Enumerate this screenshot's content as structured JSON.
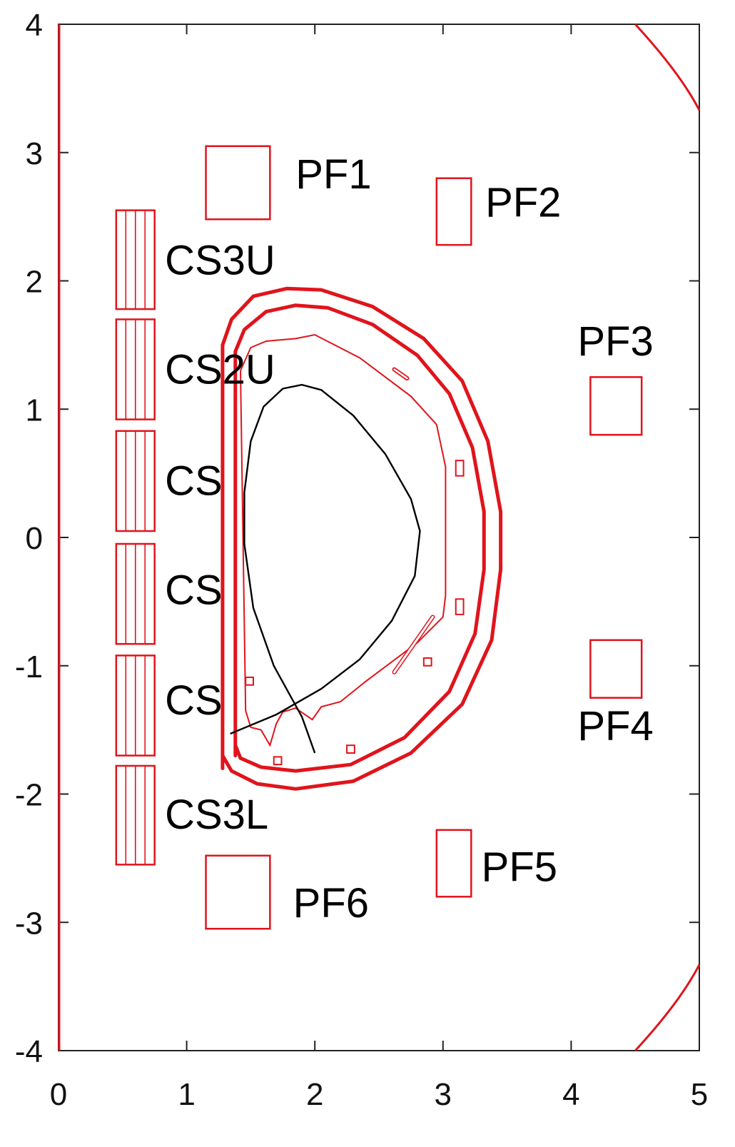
{
  "chart_data": {
    "type": "diagram",
    "xlim": [
      0,
      5
    ],
    "ylim": [
      -4,
      4
    ],
    "x_ticks": [
      0,
      1,
      2,
      3,
      4,
      5
    ],
    "y_ticks": [
      4,
      3,
      2,
      1,
      0,
      -1,
      -2,
      -3,
      -4
    ],
    "x_tick_labels": [
      "0",
      "1",
      "2",
      "3",
      "4",
      "5"
    ],
    "y_tick_labels": [
      "4",
      "3",
      "2",
      "1",
      "0",
      "-1",
      "-2",
      "-3",
      "-4"
    ],
    "colors": {
      "structure": "#e0141c",
      "plasma": "#000000",
      "axes": "#222222"
    },
    "pf_coils": [
      {
        "name": "PF1",
        "r": [
          1.15,
          1.65
        ],
        "z": [
          2.48,
          3.05
        ]
      },
      {
        "name": "PF2",
        "r": [
          2.95,
          3.22
        ],
        "z": [
          2.28,
          2.8
        ]
      },
      {
        "name": "PF3",
        "r": [
          4.15,
          4.55
        ],
        "z": [
          0.8,
          1.25
        ]
      },
      {
        "name": "PF4",
        "r": [
          4.15,
          4.55
        ],
        "z": [
          -1.25,
          -0.8
        ]
      },
      {
        "name": "PF5",
        "r": [
          2.95,
          3.22
        ],
        "z": [
          -2.8,
          -2.28
        ]
      },
      {
        "name": "PF6",
        "r": [
          1.15,
          1.65
        ],
        "z": [
          -3.05,
          -2.48
        ]
      }
    ],
    "cs_modules": [
      {
        "name": "CS3U",
        "z": [
          1.78,
          2.55
        ]
      },
      {
        "name": "CS2U",
        "z": [
          0.92,
          1.7
        ]
      },
      {
        "name": "CS1U",
        "z": [
          0.05,
          0.83
        ]
      },
      {
        "name": "CS1L",
        "z": [
          -0.83,
          -0.05
        ]
      },
      {
        "name": "CS2L",
        "z": [
          -1.7,
          -0.92
        ]
      },
      {
        "name": "CS3L",
        "z": [
          -2.55,
          -1.78
        ]
      }
    ],
    "cs_r": [
      0.45,
      0.75
    ],
    "labels": [
      {
        "key": "PF1",
        "text": "PF1"
      },
      {
        "key": "PF2",
        "text": "PF2"
      },
      {
        "key": "PF3",
        "text": "PF3"
      },
      {
        "key": "PF4",
        "text": "PF4"
      },
      {
        "key": "PF5",
        "text": "PF5"
      },
      {
        "key": "PF6",
        "text": "PF6"
      },
      {
        "key": "CS3U",
        "text": "CS3U"
      },
      {
        "key": "CS2U",
        "text": "CS2U"
      },
      {
        "key": "CS1U",
        "text": "CS"
      },
      {
        "key": "CS1L",
        "text": "CS"
      },
      {
        "key": "CS2L",
        "text": "CS"
      },
      {
        "key": "CS3L",
        "text": "CS3L"
      }
    ],
    "vessel_outer": [
      [
        1.28,
        -1.8
      ],
      [
        1.28,
        1.5
      ],
      [
        1.35,
        1.7
      ],
      [
        1.52,
        1.88
      ],
      [
        1.78,
        1.94
      ],
      [
        2.05,
        1.93
      ],
      [
        2.45,
        1.8
      ],
      [
        2.85,
        1.55
      ],
      [
        3.15,
        1.22
      ],
      [
        3.35,
        0.75
      ],
      [
        3.45,
        0.2
      ],
      [
        3.45,
        -0.25
      ],
      [
        3.38,
        -0.8
      ],
      [
        3.15,
        -1.3
      ],
      [
        2.75,
        -1.68
      ],
      [
        2.3,
        -1.9
      ],
      [
        1.85,
        -1.96
      ],
      [
        1.55,
        -1.92
      ],
      [
        1.35,
        -1.82
      ],
      [
        1.28,
        -1.7
      ]
    ],
    "vessel_inner": [
      [
        1.38,
        -1.7
      ],
      [
        1.38,
        1.45
      ],
      [
        1.45,
        1.62
      ],
      [
        1.62,
        1.76
      ],
      [
        1.85,
        1.81
      ],
      [
        2.1,
        1.79
      ],
      [
        2.45,
        1.66
      ],
      [
        2.8,
        1.42
      ],
      [
        3.05,
        1.12
      ],
      [
        3.23,
        0.7
      ],
      [
        3.32,
        0.2
      ],
      [
        3.32,
        -0.25
      ],
      [
        3.25,
        -0.75
      ],
      [
        3.05,
        -1.2
      ],
      [
        2.7,
        -1.56
      ],
      [
        2.28,
        -1.77
      ],
      [
        1.85,
        -1.82
      ],
      [
        1.58,
        -1.79
      ],
      [
        1.42,
        -1.72
      ],
      [
        1.38,
        -1.62
      ]
    ],
    "first_wall": [
      [
        1.46,
        -1.35
      ],
      [
        1.42,
        1.3
      ],
      [
        1.5,
        1.48
      ],
      [
        1.62,
        1.53
      ],
      [
        1.85,
        1.55
      ],
      [
        2.0,
        1.58
      ],
      [
        2.35,
        1.4
      ],
      [
        2.75,
        1.1
      ],
      [
        2.95,
        0.88
      ],
      [
        3.02,
        0.55
      ],
      [
        3.02,
        -0.45
      ],
      [
        3.0,
        -0.62
      ],
      [
        2.8,
        -0.82
      ],
      [
        2.4,
        -1.12
      ],
      [
        2.2,
        -1.28
      ],
      [
        2.05,
        -1.32
      ],
      [
        1.98,
        -1.42
      ],
      [
        1.85,
        -1.33
      ],
      [
        1.75,
        -1.36
      ],
      [
        1.7,
        -1.45
      ],
      [
        1.65,
        -1.62
      ],
      [
        1.58,
        -1.5
      ],
      [
        1.5,
        -1.48
      ],
      [
        1.46,
        -1.35
      ]
    ],
    "ports": [
      {
        "r": [
          1.46,
          1.52
        ],
        "z": [
          -1.15,
          -1.09
        ]
      },
      {
        "r": [
          1.68,
          1.74
        ],
        "z": [
          -1.77,
          -1.71
        ]
      },
      {
        "r": [
          2.25,
          2.31
        ],
        "z": [
          -1.68,
          -1.62
        ]
      },
      {
        "r": [
          2.85,
          2.91
        ],
        "z": [
          -1.0,
          -0.94
        ]
      },
      {
        "r": [
          3.1,
          3.16
        ],
        "z": [
          -0.6,
          -0.48
        ]
      },
      {
        "r": [
          3.1,
          3.16
        ],
        "z": [
          0.48,
          0.6
        ]
      }
    ],
    "antenna_plate": [
      [
        2.62,
        -1.05
      ],
      [
        2.92,
        -0.62
      ]
    ],
    "small_coil": [
      [
        2.62,
        1.31
      ],
      [
        2.72,
        1.24
      ]
    ],
    "plasma_boundary": [
      [
        2.0,
        -1.68
      ],
      [
        1.9,
        -1.4
      ],
      [
        1.68,
        -1.0
      ],
      [
        1.52,
        -0.55
      ],
      [
        1.45,
        -0.05
      ],
      [
        1.45,
        0.35
      ],
      [
        1.5,
        0.75
      ],
      [
        1.6,
        1.02
      ],
      [
        1.75,
        1.16
      ],
      [
        1.9,
        1.19
      ],
      [
        2.05,
        1.15
      ],
      [
        2.3,
        0.95
      ],
      [
        2.55,
        0.65
      ],
      [
        2.75,
        0.3
      ],
      [
        2.82,
        0.05
      ],
      [
        2.78,
        -0.3
      ],
      [
        2.6,
        -0.65
      ],
      [
        2.35,
        -0.95
      ],
      [
        2.05,
        -1.18
      ],
      [
        1.7,
        -1.38
      ],
      [
        1.34,
        -1.53
      ]
    ],
    "cryostat_arcs": [
      [
        [
          4.5,
          4.0
        ],
        [
          4.85,
          3.62
        ],
        [
          5.0,
          3.33
        ]
      ],
      [
        [
          4.5,
          -4.0
        ],
        [
          4.85,
          -3.62
        ],
        [
          5.0,
          -3.33
        ]
      ]
    ]
  }
}
